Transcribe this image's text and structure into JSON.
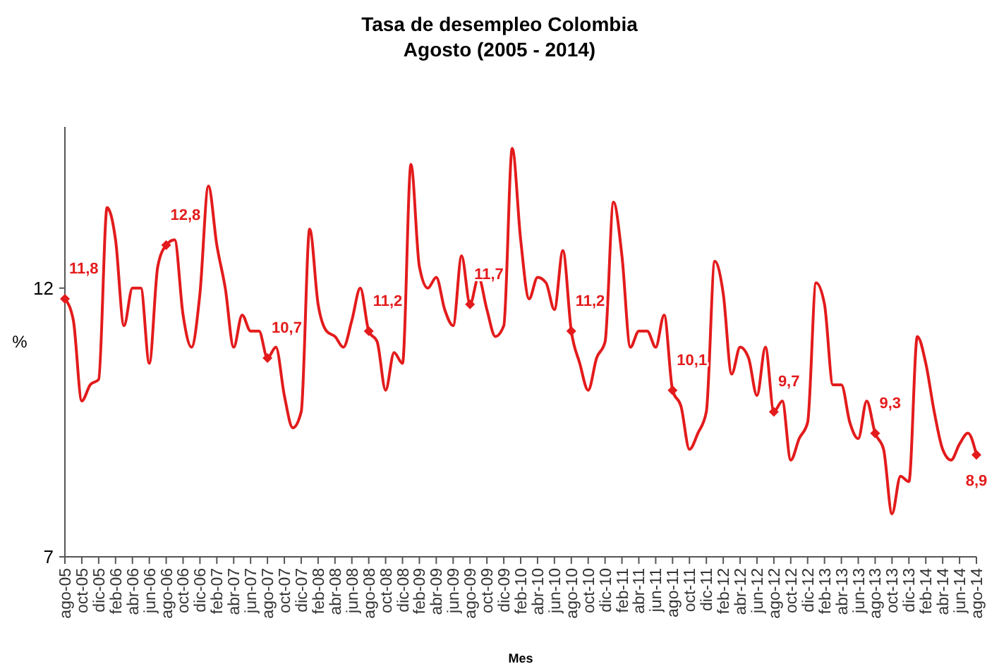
{
  "chart_data": {
    "type": "line",
    "title": "Tasa de desempleo Colombia",
    "subtitle": "Agosto (2005 - 2014)",
    "xlabel": "Mes",
    "ylabel": "%",
    "categories": [
      "ago-05",
      null,
      "oct-05",
      null,
      "dic-05",
      null,
      "feb-06",
      null,
      "abr-06",
      null,
      "jun-06",
      null,
      "ago-06",
      null,
      "oct-06",
      null,
      "dic-06",
      null,
      "feb-07",
      null,
      "abr-07",
      null,
      "jun-07",
      null,
      "ago-07",
      null,
      "oct-07",
      null,
      "dic-07",
      null,
      "feb-08",
      null,
      "abr-08",
      null,
      "jun-08",
      null,
      "ago-08",
      null,
      "oct-08",
      null,
      "dic-08",
      null,
      "feb-09",
      null,
      "abr-09",
      null,
      "jun-09",
      null,
      "ago-09",
      null,
      "oct-09",
      null,
      "dic-09",
      null,
      "feb-10",
      null,
      "abr-10",
      null,
      "jun-10",
      null,
      "ago-10",
      null,
      "oct-10",
      null,
      "dic-10",
      null,
      "feb-11",
      null,
      "abr-11",
      null,
      "jun-11",
      null,
      "ago-11",
      null,
      "oct-11",
      null,
      "dic-11",
      null,
      "feb-12",
      null,
      "abr-12",
      null,
      "jun-12",
      null,
      "ago-12",
      null,
      "oct-12",
      null,
      "dic-12",
      null,
      "feb-13",
      null,
      "abr-13",
      null,
      "jun-13",
      null,
      "ago-13",
      null,
      "oct-13",
      null,
      "dic-13",
      null,
      "feb-14",
      null,
      "abr-14",
      null,
      "jun-14",
      null,
      "ago-14"
    ],
    "series": [
      {
        "color": "#e31b1c",
        "values": [
          11.8,
          11.4,
          9.9,
          10.2,
          10.3,
          13.5,
          12.9,
          11.3,
          12.0,
          12.0,
          10.6,
          12.4,
          12.8,
          12.9,
          11.5,
          10.9,
          11.9,
          13.9,
          12.8,
          12.0,
          10.9,
          11.5,
          11.2,
          11.2,
          10.7,
          10.9,
          10.0,
          9.4,
          9.7,
          13.1,
          11.7,
          11.2,
          11.1,
          10.9,
          11.4,
          12.0,
          11.2,
          11.0,
          10.1,
          10.8,
          10.6,
          14.3,
          12.4,
          12.0,
          12.2,
          11.6,
          11.3,
          12.6,
          11.7,
          12.2,
          11.6,
          11.1,
          11.3,
          14.6,
          12.9,
          11.8,
          12.2,
          12.1,
          11.6,
          12.7,
          11.2,
          10.6,
          10.1,
          10.7,
          11.0,
          13.6,
          12.6,
          10.9,
          11.2,
          11.2,
          10.9,
          11.5,
          10.1,
          9.8,
          9.0,
          9.3,
          9.7,
          12.5,
          11.9,
          10.4,
          10.9,
          10.7,
          10.0,
          10.9,
          9.7,
          9.9,
          8.8,
          9.2,
          9.5,
          12.1,
          11.7,
          10.2,
          10.2,
          9.5,
          9.2,
          9.9,
          9.3,
          9.0,
          7.8,
          8.5,
          8.4,
          11.1,
          10.6,
          9.7,
          9.0,
          8.8,
          9.1,
          9.3,
          8.9
        ],
        "value_labels": [
          "11,8",
          null,
          null,
          null,
          null,
          null,
          null,
          null,
          null,
          null,
          null,
          null,
          "12,8",
          null,
          null,
          null,
          null,
          null,
          null,
          null,
          null,
          null,
          null,
          null,
          "10,7",
          null,
          null,
          null,
          null,
          null,
          null,
          null,
          null,
          null,
          null,
          null,
          "11,2",
          null,
          null,
          null,
          null,
          null,
          null,
          null,
          null,
          null,
          null,
          null,
          "11,7",
          null,
          null,
          null,
          null,
          null,
          null,
          null,
          null,
          null,
          null,
          null,
          "11,2",
          null,
          null,
          null,
          null,
          null,
          null,
          null,
          null,
          null,
          null,
          null,
          "10,1",
          null,
          null,
          null,
          null,
          null,
          null,
          null,
          null,
          null,
          null,
          null,
          "9,7",
          null,
          null,
          null,
          null,
          null,
          null,
          null,
          null,
          null,
          null,
          null,
          "9,3",
          null,
          null,
          null,
          null,
          null,
          null,
          null,
          null,
          null,
          null,
          null,
          "8,9"
        ]
      }
    ],
    "ylim": [
      7,
      15
    ],
    "yticks": [
      7,
      12
    ],
    "grid": false,
    "line_style": "solid"
  }
}
